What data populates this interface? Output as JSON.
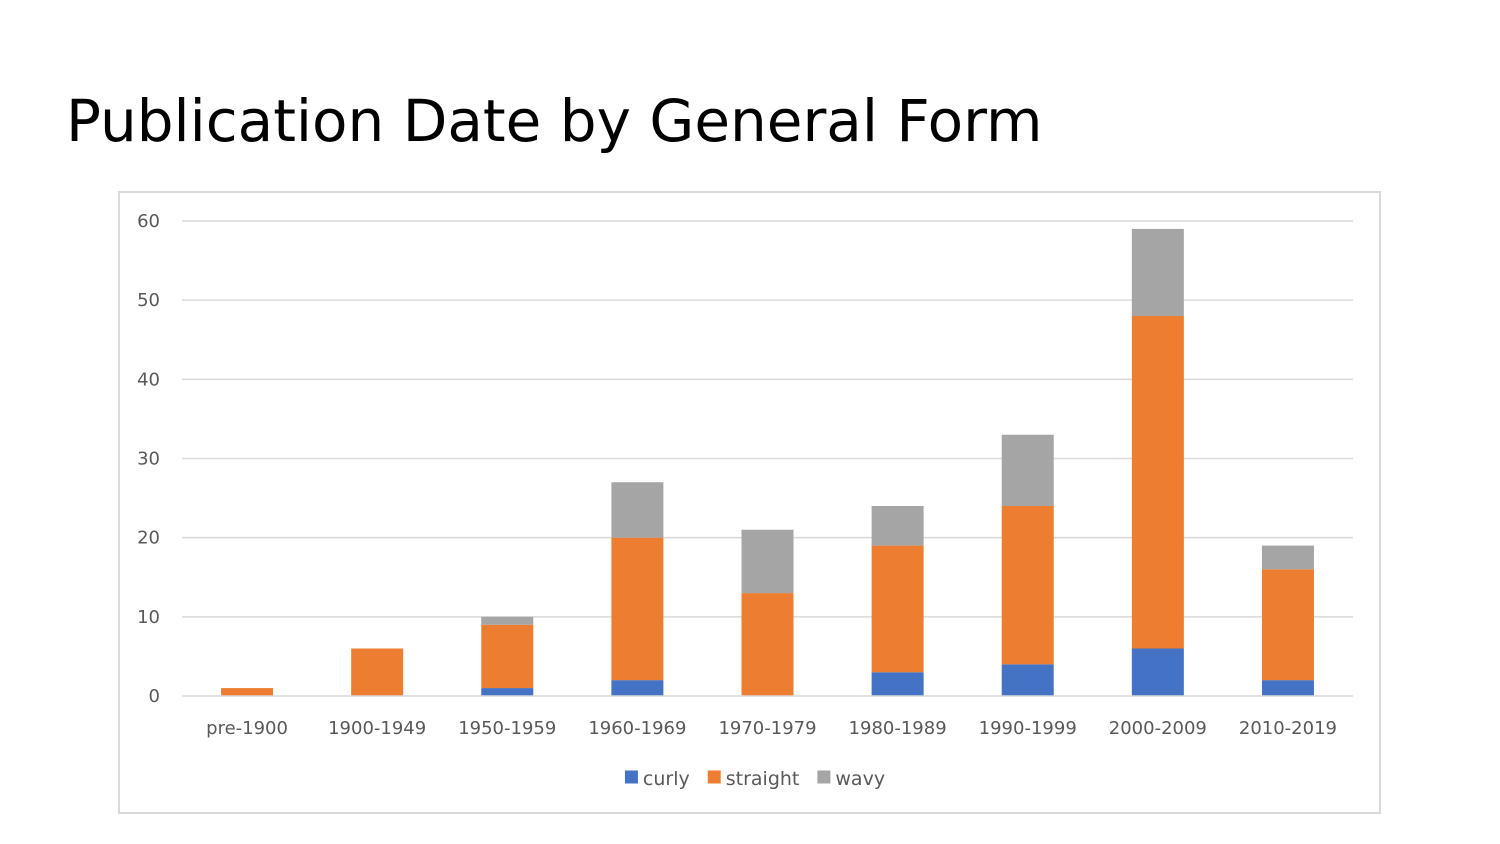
{
  "slide": {
    "title": "Publication Date by General Form"
  },
  "chart_data": {
    "type": "bar",
    "stacked": true,
    "categories": [
      "pre-1900",
      "1900-1949",
      "1950-1959",
      "1960-1969",
      "1970-1979",
      "1980-1989",
      "1990-1999",
      "2000-2009",
      "2010-2019"
    ],
    "series": [
      {
        "name": "curly",
        "color": "#4472c4",
        "values": [
          0,
          0,
          1,
          2,
          0,
          3,
          4,
          6,
          2
        ]
      },
      {
        "name": "straight",
        "color": "#ed7d31",
        "values": [
          1,
          6,
          8,
          18,
          13,
          16,
          20,
          42,
          14
        ]
      },
      {
        "name": "wavy",
        "color": "#a5a5a5",
        "values": [
          0,
          0,
          1,
          7,
          8,
          5,
          9,
          11,
          3
        ]
      }
    ],
    "ylim": [
      0,
      60
    ],
    "yticks": [
      0,
      10,
      20,
      30,
      40,
      50,
      60
    ],
    "grid": true,
    "legend_position": "bottom",
    "title": "",
    "xlabel": "",
    "ylabel": ""
  }
}
